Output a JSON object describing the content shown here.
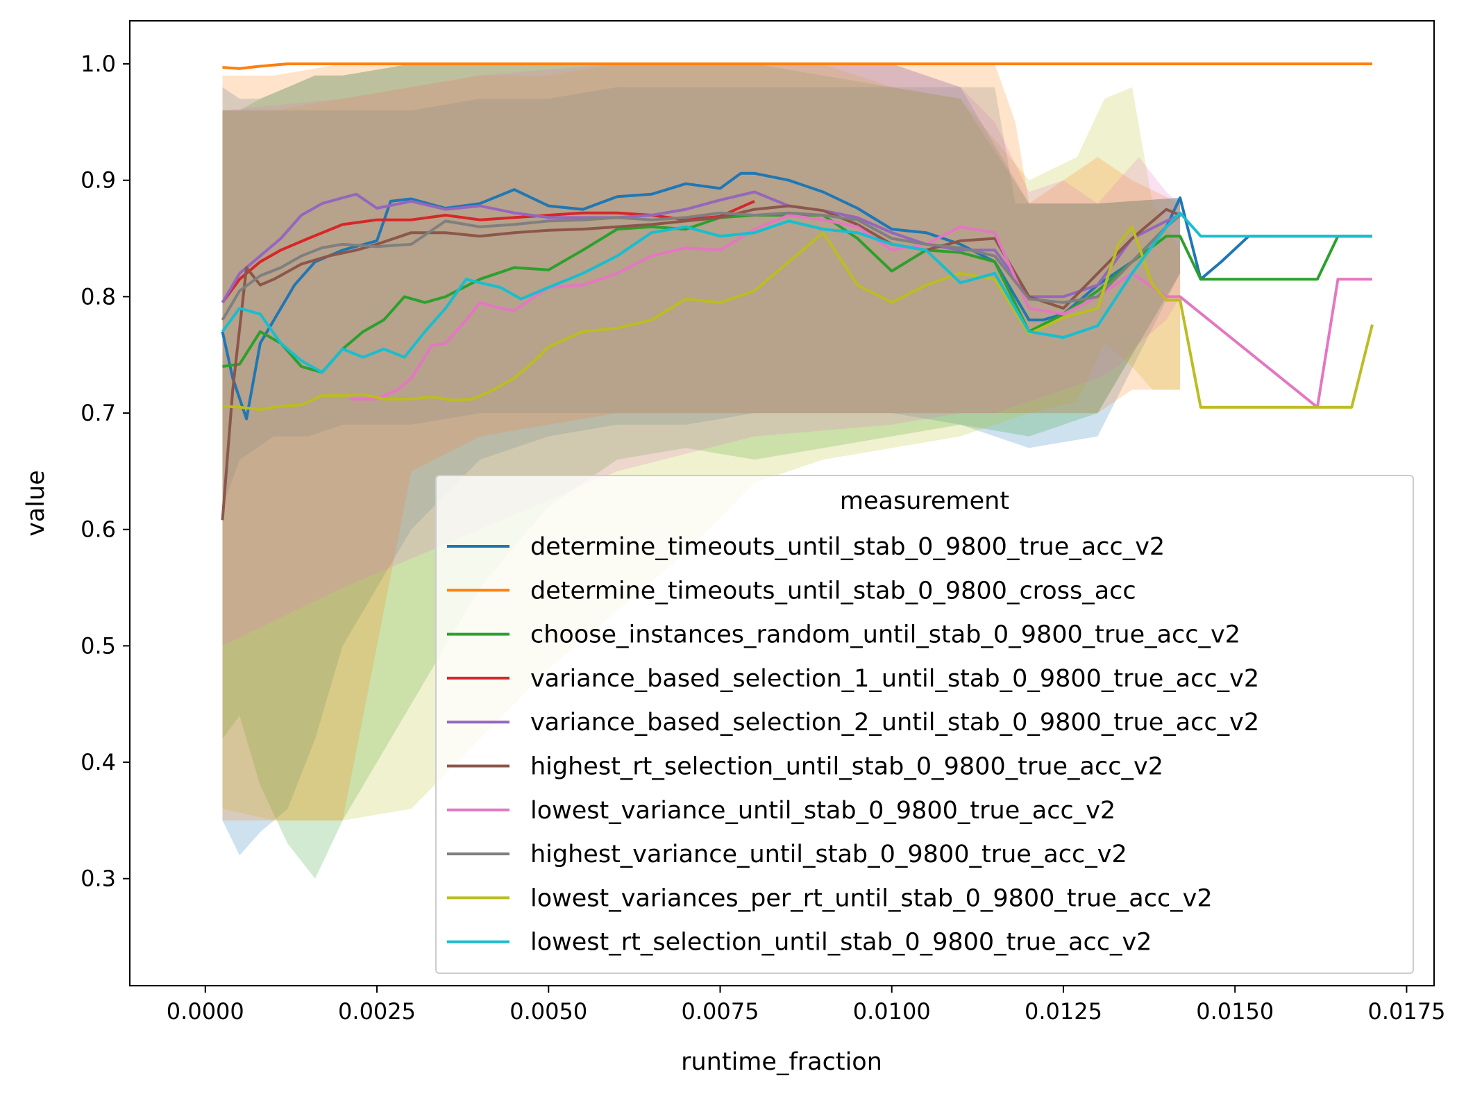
{
  "chart_data": {
    "type": "line",
    "xlabel": "runtime_fraction",
    "ylabel": "value",
    "xlim": [
      -0.0011,
      0.0179
    ],
    "ylim": [
      0.208,
      1.037
    ],
    "xticks": [
      0.0,
      0.0025,
      0.005,
      0.0075,
      0.01,
      0.0125,
      0.015,
      0.0175
    ],
    "xtick_labels": [
      "0.0000",
      "0.0025",
      "0.0050",
      "0.0075",
      "0.0100",
      "0.0125",
      "0.0150",
      "0.0175"
    ],
    "yticks": [
      0.3,
      0.4,
      0.5,
      0.6,
      0.7,
      0.8,
      0.9,
      1.0
    ],
    "ytick_labels": [
      "0.3",
      "0.4",
      "0.5",
      "0.6",
      "0.7",
      "0.8",
      "0.9",
      "1.0"
    ],
    "grid": false,
    "legend": {
      "title": "measurement",
      "placement": "lower right"
    },
    "bands": [
      {
        "color": "#1f77b4",
        "x": [
          0.00025,
          0.0005,
          0.0008,
          0.0012,
          0.0016,
          0.002,
          0.003,
          0.004,
          0.005,
          0.006,
          0.007,
          0.008,
          0.009,
          0.01,
          0.011,
          0.012,
          0.013,
          0.0142
        ],
        "upper": [
          0.98,
          0.97,
          0.97,
          0.98,
          0.99,
          0.99,
          1.0,
          1.0,
          1.0,
          1.0,
          1.0,
          1.0,
          1.0,
          1.0,
          0.98,
          0.88,
          0.88,
          0.885
        ],
        "lower": [
          0.35,
          0.32,
          0.34,
          0.36,
          0.42,
          0.5,
          0.6,
          0.66,
          0.68,
          0.69,
          0.69,
          0.7,
          0.7,
          0.7,
          0.69,
          0.67,
          0.68,
          0.82
        ]
      },
      {
        "color": "#2ca02c",
        "x": [
          0.00025,
          0.0005,
          0.0008,
          0.0012,
          0.0016,
          0.002,
          0.003,
          0.004,
          0.005,
          0.006,
          0.007,
          0.008,
          0.009,
          0.01,
          0.011,
          0.012,
          0.013,
          0.0142
        ],
        "upper": [
          0.96,
          0.96,
          0.97,
          0.98,
          0.99,
          0.99,
          1.0,
          1.0,
          1.0,
          1.0,
          1.0,
          1.0,
          0.99,
          0.98,
          0.97,
          0.88,
          0.88,
          0.885
        ],
        "lower": [
          0.42,
          0.44,
          0.38,
          0.33,
          0.3,
          0.35,
          0.45,
          0.55,
          0.62,
          0.66,
          0.67,
          0.66,
          0.67,
          0.68,
          0.69,
          0.68,
          0.7,
          0.82
        ]
      },
      {
        "color": "#bcbd22",
        "x": [
          0.00025,
          0.001,
          0.002,
          0.003,
          0.004,
          0.005,
          0.006,
          0.007,
          0.008,
          0.009,
          0.01,
          0.011,
          0.012,
          0.0127,
          0.0131,
          0.0135,
          0.0138,
          0.0142
        ],
        "upper": [
          0.96,
          0.96,
          0.97,
          0.98,
          0.99,
          0.99,
          1.0,
          1.0,
          1.0,
          1.0,
          0.98,
          0.97,
          0.9,
          0.92,
          0.97,
          0.98,
          0.88,
          0.84
        ],
        "lower": [
          0.36,
          0.35,
          0.35,
          0.36,
          0.42,
          0.48,
          0.53,
          0.58,
          0.64,
          0.66,
          0.67,
          0.68,
          0.7,
          0.71,
          0.76,
          0.74,
          0.72,
          0.72
        ]
      },
      {
        "color": "#ff7f0e",
        "x": [
          0.00025,
          0.001,
          0.002,
          0.003,
          0.004,
          0.005,
          0.006,
          0.007,
          0.008,
          0.009,
          0.01,
          0.011,
          0.0115,
          0.0118,
          0.012,
          0.0125,
          0.013,
          0.0135,
          0.0142
        ],
        "upper": [
          0.99,
          0.99,
          1.0,
          1.0,
          1.0,
          1.0,
          1.0,
          1.0,
          1.0,
          1.0,
          1.0,
          1.0,
          1.0,
          0.95,
          0.88,
          0.9,
          0.92,
          0.9,
          0.88
        ],
        "lower": [
          0.35,
          0.35,
          0.35,
          0.65,
          0.68,
          0.69,
          0.7,
          0.7,
          0.7,
          0.7,
          0.7,
          0.7,
          0.7,
          0.7,
          0.7,
          0.7,
          0.7,
          0.72,
          0.72
        ]
      },
      {
        "color": "#e377c2",
        "x": [
          0.00025,
          0.002,
          0.004,
          0.006,
          0.008,
          0.01,
          0.011,
          0.0115,
          0.012,
          0.0125,
          0.013,
          0.0133,
          0.0136,
          0.014,
          0.0142
        ],
        "upper": [
          0.96,
          0.97,
          0.99,
          1.0,
          1.0,
          1.0,
          0.98,
          0.95,
          0.89,
          0.9,
          0.88,
          0.9,
          0.92,
          0.89,
          0.88
        ],
        "lower": [
          0.5,
          0.55,
          0.6,
          0.65,
          0.68,
          0.69,
          0.7,
          0.7,
          0.71,
          0.72,
          0.73,
          0.74,
          0.76,
          0.78,
          0.8
        ]
      },
      {
        "color": "#7f7f7f",
        "x": [
          0.00025,
          0.0005,
          0.001,
          0.0015,
          0.002,
          0.003,
          0.004,
          0.005,
          0.006,
          0.007,
          0.008,
          0.009,
          0.01,
          0.011,
          0.0115,
          0.0118,
          0.012,
          0.013,
          0.0142
        ],
        "upper": [
          0.96,
          0.96,
          0.96,
          0.96,
          0.96,
          0.96,
          0.97,
          0.97,
          0.98,
          0.98,
          0.98,
          0.98,
          0.98,
          0.98,
          0.98,
          0.88,
          0.88,
          0.88,
          0.885
        ],
        "lower": [
          0.62,
          0.66,
          0.68,
          0.68,
          0.69,
          0.69,
          0.7,
          0.7,
          0.7,
          0.7,
          0.7,
          0.7,
          0.7,
          0.7,
          0.7,
          0.7,
          0.7,
          0.7,
          0.82
        ]
      }
    ],
    "series": [
      {
        "name": "determine_timeouts_until_stab_0_9800_true_acc_v2",
        "color": "#1f77b4",
        "x": [
          0.00025,
          0.0004,
          0.0006,
          0.0008,
          0.001,
          0.0013,
          0.0016,
          0.002,
          0.0025,
          0.0027,
          0.003,
          0.0035,
          0.004,
          0.0045,
          0.005,
          0.0055,
          0.006,
          0.0065,
          0.007,
          0.0075,
          0.0078,
          0.008,
          0.0085,
          0.009,
          0.0095,
          0.01,
          0.0105,
          0.011,
          0.0115,
          0.012,
          0.0122,
          0.0125,
          0.013,
          0.0135,
          0.014,
          0.0142,
          0.0145,
          0.0148,
          0.0152,
          0.016,
          0.017
        ],
        "y": [
          0.77,
          0.73,
          0.695,
          0.76,
          0.78,
          0.81,
          0.83,
          0.84,
          0.848,
          0.882,
          0.884,
          0.876,
          0.88,
          0.892,
          0.878,
          0.875,
          0.886,
          0.888,
          0.897,
          0.893,
          0.906,
          0.906,
          0.9,
          0.89,
          0.876,
          0.858,
          0.855,
          0.845,
          0.83,
          0.78,
          0.78,
          0.785,
          0.81,
          0.83,
          0.86,
          0.885,
          0.815,
          0.83,
          0.852,
          0.852,
          0.852
        ]
      },
      {
        "name": "determine_timeouts_until_stab_0_9800_cross_acc",
        "color": "#ff7f0e",
        "x": [
          0.00025,
          0.0005,
          0.0008,
          0.0012,
          0.002,
          0.005,
          0.01,
          0.0142,
          0.017
        ],
        "y": [
          0.997,
          0.996,
          0.998,
          1.0,
          1.0,
          1.0,
          1.0,
          1.0,
          1.0
        ]
      },
      {
        "name": "choose_instances_random_until_stab_0_9800_true_acc_v2",
        "color": "#2ca02c",
        "x": [
          0.00025,
          0.0005,
          0.0008,
          0.0011,
          0.0014,
          0.0017,
          0.002,
          0.0023,
          0.0026,
          0.0029,
          0.0032,
          0.0035,
          0.004,
          0.0045,
          0.005,
          0.0055,
          0.006,
          0.0065,
          0.007,
          0.0075,
          0.008,
          0.0085,
          0.009,
          0.0095,
          0.01,
          0.0105,
          0.011,
          0.0115,
          0.012,
          0.0125,
          0.013,
          0.0135,
          0.014,
          0.0142,
          0.0145,
          0.015,
          0.0162,
          0.0165,
          0.017
        ],
        "y": [
          0.74,
          0.742,
          0.77,
          0.76,
          0.74,
          0.735,
          0.755,
          0.77,
          0.78,
          0.8,
          0.795,
          0.8,
          0.815,
          0.825,
          0.823,
          0.84,
          0.858,
          0.86,
          0.858,
          0.868,
          0.87,
          0.87,
          0.87,
          0.85,
          0.822,
          0.84,
          0.838,
          0.83,
          0.77,
          0.785,
          0.805,
          0.83,
          0.852,
          0.852,
          0.815,
          0.815,
          0.815,
          0.852,
          0.852
        ]
      },
      {
        "name": "variance_based_selection_1_until_stab_0_9800_true_acc_v2",
        "color": "#d62728",
        "x": [
          0.00025,
          0.0005,
          0.0008,
          0.0011,
          0.0015,
          0.002,
          0.0025,
          0.003,
          0.0035,
          0.004,
          0.0045,
          0.005,
          0.0055,
          0.006,
          0.0065,
          0.007,
          0.0075,
          0.008
        ],
        "y": [
          0.795,
          0.815,
          0.83,
          0.84,
          0.85,
          0.862,
          0.866,
          0.866,
          0.87,
          0.866,
          0.868,
          0.87,
          0.872,
          0.872,
          0.87,
          0.866,
          0.869,
          0.882
        ]
      },
      {
        "name": "variance_based_selection_2_until_stab_0_9800_true_acc_v2",
        "color": "#9467bd",
        "x": [
          0.00025,
          0.0005,
          0.0008,
          0.0011,
          0.0014,
          0.0017,
          0.002,
          0.0022,
          0.0025,
          0.003,
          0.0035,
          0.004,
          0.0045,
          0.005,
          0.0055,
          0.006,
          0.0065,
          0.007,
          0.0075,
          0.008,
          0.0085,
          0.009,
          0.0095,
          0.01,
          0.0105,
          0.011,
          0.0115,
          0.012,
          0.0125,
          0.013,
          0.0135,
          0.014,
          0.0142
        ],
        "y": [
          0.795,
          0.82,
          0.835,
          0.85,
          0.87,
          0.88,
          0.885,
          0.888,
          0.876,
          0.882,
          0.875,
          0.878,
          0.872,
          0.868,
          0.868,
          0.868,
          0.87,
          0.875,
          0.883,
          0.89,
          0.878,
          0.874,
          0.868,
          0.855,
          0.845,
          0.84,
          0.84,
          0.8,
          0.8,
          0.81,
          0.85,
          0.865,
          0.87
        ]
      },
      {
        "name": "highest_rt_selection_until_stab_0_9800_true_acc_v2",
        "color": "#8c564b",
        "x": [
          0.00025,
          0.0004,
          0.0006,
          0.0008,
          0.001,
          0.0014,
          0.0018,
          0.0022,
          0.0025,
          0.003,
          0.0035,
          0.004,
          0.0045,
          0.005,
          0.0055,
          0.006,
          0.0065,
          0.007,
          0.0075,
          0.008,
          0.0085,
          0.009,
          0.0095,
          0.01,
          0.0105,
          0.011,
          0.0115,
          0.012,
          0.0125,
          0.013,
          0.0135,
          0.014,
          0.0142
        ],
        "y": [
          0.608,
          0.72,
          0.825,
          0.81,
          0.815,
          0.828,
          0.835,
          0.84,
          0.845,
          0.855,
          0.855,
          0.852,
          0.855,
          0.857,
          0.858,
          0.86,
          0.862,
          0.865,
          0.868,
          0.875,
          0.878,
          0.874,
          0.862,
          0.845,
          0.84,
          0.848,
          0.85,
          0.8,
          0.79,
          0.82,
          0.85,
          0.875,
          0.87
        ]
      },
      {
        "name": "lowest_variance_until_stab_0_9800_true_acc_v2",
        "color": "#e377c2",
        "x": [
          0.0021,
          0.0025,
          0.0028,
          0.003,
          0.0033,
          0.0035,
          0.0038,
          0.004,
          0.0043,
          0.0045,
          0.0048,
          0.005,
          0.0055,
          0.006,
          0.0065,
          0.007,
          0.0075,
          0.008,
          0.0085,
          0.009,
          0.0095,
          0.01,
          0.0105,
          0.011,
          0.0115,
          0.012,
          0.0125,
          0.013,
          0.0135,
          0.014,
          0.0142,
          0.0162,
          0.0165,
          0.017
        ],
        "y": [
          0.712,
          0.712,
          0.72,
          0.73,
          0.758,
          0.76,
          0.78,
          0.795,
          0.79,
          0.788,
          0.8,
          0.808,
          0.81,
          0.82,
          0.835,
          0.842,
          0.84,
          0.858,
          0.87,
          0.866,
          0.86,
          0.84,
          0.845,
          0.86,
          0.855,
          0.79,
          0.785,
          0.8,
          0.82,
          0.8,
          0.8,
          0.705,
          0.815,
          0.815
        ]
      },
      {
        "name": "highest_variance_until_stab_0_9800_true_acc_v2",
        "color": "#7f7f7f",
        "x": [
          0.00025,
          0.0005,
          0.0008,
          0.0011,
          0.0014,
          0.0017,
          0.002,
          0.0025,
          0.003,
          0.0035,
          0.004,
          0.0045,
          0.005,
          0.0055,
          0.006,
          0.0065,
          0.007,
          0.0075,
          0.008,
          0.0085,
          0.009,
          0.0095,
          0.01,
          0.0105,
          0.011,
          0.0115,
          0.012,
          0.0125,
          0.013,
          0.0135,
          0.014,
          0.0142
        ],
        "y": [
          0.78,
          0.805,
          0.818,
          0.825,
          0.835,
          0.842,
          0.845,
          0.843,
          0.845,
          0.865,
          0.86,
          0.862,
          0.865,
          0.866,
          0.868,
          0.866,
          0.868,
          0.872,
          0.87,
          0.872,
          0.87,
          0.866,
          0.85,
          0.845,
          0.842,
          0.835,
          0.798,
          0.795,
          0.8,
          0.83,
          0.86,
          0.87
        ]
      },
      {
        "name": "lowest_variances_per_rt_until_stab_0_9800_true_acc_v2",
        "color": "#bcbd22",
        "x": [
          0.00025,
          0.0005,
          0.0008,
          0.0011,
          0.0014,
          0.0017,
          0.002,
          0.0023,
          0.0026,
          0.003,
          0.0033,
          0.0036,
          0.0039,
          0.0042,
          0.0045,
          0.0048,
          0.005,
          0.0055,
          0.006,
          0.0065,
          0.007,
          0.0075,
          0.008,
          0.0085,
          0.009,
          0.0095,
          0.01,
          0.0105,
          0.011,
          0.0115,
          0.012,
          0.0125,
          0.013,
          0.0133,
          0.0135,
          0.0138,
          0.014,
          0.0142,
          0.0145,
          0.0162,
          0.0167,
          0.017
        ],
        "y": [
          0.706,
          0.705,
          0.703,
          0.706,
          0.707,
          0.715,
          0.715,
          0.716,
          0.712,
          0.712,
          0.714,
          0.711,
          0.712,
          0.72,
          0.73,
          0.745,
          0.757,
          0.77,
          0.773,
          0.78,
          0.798,
          0.795,
          0.805,
          0.83,
          0.855,
          0.81,
          0.795,
          0.81,
          0.82,
          0.815,
          0.768,
          0.782,
          0.79,
          0.845,
          0.86,
          0.81,
          0.797,
          0.797,
          0.705,
          0.705,
          0.705,
          0.776
        ]
      },
      {
        "name": "lowest_rt_selection_until_stab_0_9800_true_acc_v2",
        "color": "#17becf",
        "x": [
          0.00025,
          0.0005,
          0.0008,
          0.0011,
          0.0014,
          0.0017,
          0.002,
          0.0023,
          0.0026,
          0.0029,
          0.0032,
          0.0035,
          0.0038,
          0.004,
          0.0043,
          0.0046,
          0.005,
          0.0055,
          0.006,
          0.0065,
          0.007,
          0.0075,
          0.008,
          0.0085,
          0.009,
          0.0095,
          0.01,
          0.0105,
          0.011,
          0.0115,
          0.012,
          0.0125,
          0.013,
          0.0135,
          0.014,
          0.0142,
          0.0145,
          0.0155,
          0.017
        ],
        "y": [
          0.77,
          0.79,
          0.785,
          0.76,
          0.745,
          0.735,
          0.755,
          0.748,
          0.755,
          0.748,
          0.77,
          0.79,
          0.815,
          0.812,
          0.808,
          0.798,
          0.808,
          0.82,
          0.835,
          0.855,
          0.86,
          0.852,
          0.855,
          0.865,
          0.858,
          0.855,
          0.845,
          0.84,
          0.812,
          0.82,
          0.77,
          0.765,
          0.775,
          0.82,
          0.86,
          0.872,
          0.852,
          0.852,
          0.852
        ]
      }
    ]
  }
}
